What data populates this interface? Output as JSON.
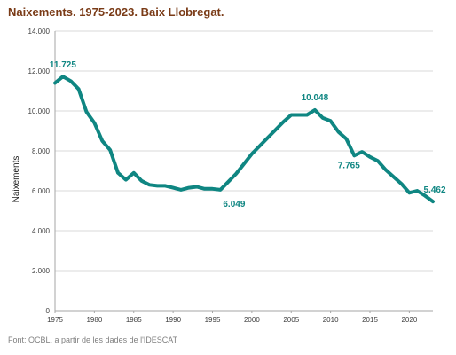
{
  "chart_data": {
    "type": "line",
    "title": "Naixements. 1975-2023. Baix Llobregat.",
    "ylabel": "Naixements",
    "xlabel": "",
    "source": "Font: OCBL, a partir de les dades de l'IDESCAT",
    "xlim": [
      1975,
      2023
    ],
    "ylim": [
      0,
      14000
    ],
    "x_ticks": [
      "1975",
      "1980",
      "1985",
      "1990",
      "1995",
      "2000",
      "2005",
      "2010",
      "2015",
      "2020"
    ],
    "y_ticks": [
      "0",
      "2.000",
      "4.000",
      "6.000",
      "8.000",
      "10.000",
      "12.000",
      "14.000"
    ],
    "grid": true,
    "legend": "none",
    "series": [
      {
        "color": "#0f8682",
        "x": [
          1975,
          1976,
          1977,
          1978,
          1979,
          1980,
          1981,
          1982,
          1983,
          1984,
          1985,
          1986,
          1987,
          1988,
          1989,
          1990,
          1991,
          1992,
          1993,
          1994,
          1995,
          1996,
          1997,
          1998,
          1999,
          2000,
          2001,
          2002,
          2003,
          2004,
          2005,
          2006,
          2007,
          2008,
          2009,
          2010,
          2011,
          2012,
          2013,
          2014,
          2015,
          2016,
          2017,
          2018,
          2019,
          2020,
          2021,
          2022,
          2023
        ],
        "values": [
          11400,
          11725,
          11500,
          11100,
          9950,
          9400,
          8500,
          8050,
          6900,
          6550,
          6900,
          6500,
          6300,
          6250,
          6250,
          6150,
          6050,
          6150,
          6200,
          6100,
          6100,
          6049,
          6450,
          6850,
          7350,
          7850,
          8250,
          8650,
          9050,
          9450,
          9800,
          9800,
          9800,
          10048,
          9650,
          9500,
          8950,
          8600,
          7765,
          7950,
          7700,
          7500,
          7050,
          6700,
          6350,
          5900,
          6000,
          5750,
          5462
        ]
      }
    ],
    "annotations": [
      {
        "x": 1976,
        "y": 11725,
        "text": "11.725"
      },
      {
        "x": 1996,
        "y": 6049,
        "text": "6.049"
      },
      {
        "x": 2008,
        "y": 10048,
        "text": "10.048"
      },
      {
        "x": 2013,
        "y": 7765,
        "text": "7.765"
      },
      {
        "x": 2023,
        "y": 5462,
        "text": "5.462"
      }
    ]
  }
}
